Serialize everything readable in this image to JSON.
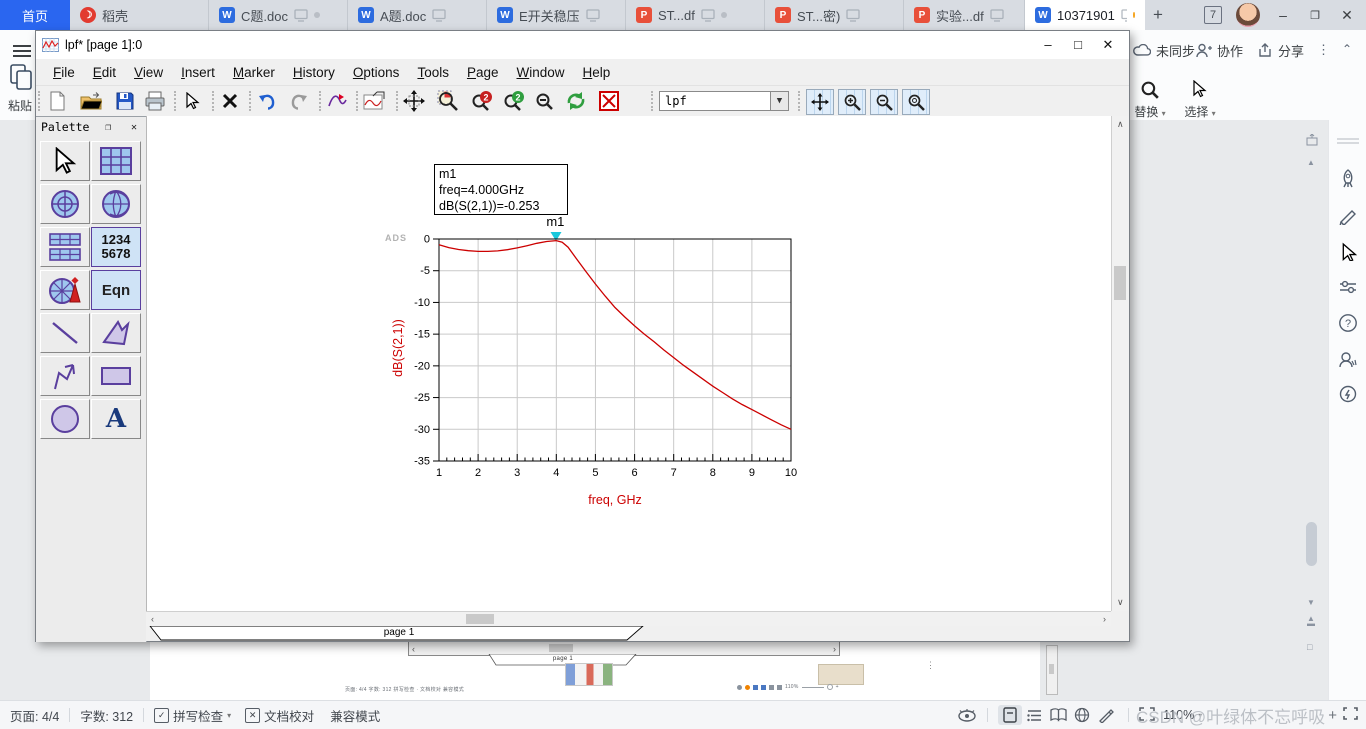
{
  "browser": {
    "tabs": [
      {
        "label": "首页"
      },
      {
        "label": "稻壳"
      },
      {
        "label": "C题.doc"
      },
      {
        "label": "A题.doc"
      },
      {
        "label": "E开关稳压"
      },
      {
        "label": "ST...df"
      },
      {
        "label": "ST...密)"
      },
      {
        "label": "实验...df"
      },
      {
        "label": "10371901"
      }
    ],
    "new_tab": "+",
    "window_count": "7",
    "minimize": "–",
    "maximize": "❐",
    "close": "✕"
  },
  "wps": {
    "paste_label": "粘贴",
    "sync_label": "未同步",
    "collab_label": "协作",
    "share_label": "分享",
    "more_label": "⋮",
    "collapse_label": "⌃",
    "replace_label": "替换",
    "select_label": "选择",
    "dropdown_arrow": "▾",
    "status": {
      "page": "页面: 4/4",
      "words": "字数: 312",
      "spell": "拼写检查",
      "proof": "文档校对",
      "compat": "兼容模式",
      "zoom": "110%"
    },
    "watermark": "CSDN @叶绿体不忘呼吸"
  },
  "ads": {
    "title": "lpf* [page 1]:0",
    "minimize": "–",
    "maximize": "□",
    "close": "✕",
    "menus": [
      "File",
      "Edit",
      "View",
      "Insert",
      "Marker",
      "History",
      "Options",
      "Tools",
      "Page",
      "Window",
      "Help"
    ],
    "combo_value": "lpf",
    "palette": {
      "title": "Palette",
      "list_line1": "1234",
      "list_line2": "5678",
      "eqn_text": "Eqn",
      "text_tool": "A"
    },
    "page_tab": "page 1"
  },
  "background": {
    "page_tab": "page 1",
    "micro_status_left": "页面: 4/4  字数: 312  拼写检查 · 文档校对  兼容模式",
    "micro_zoom": "110%"
  },
  "chart_data": {
    "type": "line",
    "title": "",
    "brand": "ADS",
    "xlabel": "freq, GHz",
    "ylabel": "dB(S(2,1))",
    "xlim": [
      1,
      10
    ],
    "ylim": [
      -35,
      0
    ],
    "xticks": [
      1,
      2,
      3,
      4,
      5,
      6,
      7,
      8,
      9,
      10
    ],
    "yticks": [
      0,
      -5,
      -10,
      -15,
      -20,
      -25,
      -30,
      -35
    ],
    "grid": true,
    "line_color": "#cc0000",
    "marker": {
      "id": "m1",
      "x": 4.0,
      "y": -0.253,
      "line1": "m1",
      "line2": "freq=4.000GHz",
      "line3": "dB(S(2,1))=-0.253",
      "color": "#19c8dc"
    },
    "series": [
      {
        "name": "dB(S(2,1))",
        "x": [
          1,
          1.25,
          1.5,
          1.75,
          2,
          2.25,
          2.5,
          2.75,
          3,
          3.25,
          3.5,
          3.75,
          4,
          4.15,
          4.3,
          4.5,
          4.75,
          5,
          5.25,
          5.5,
          5.75,
          6,
          6.25,
          6.5,
          6.75,
          7,
          7.25,
          7.5,
          7.75,
          8,
          8.25,
          8.5,
          8.75,
          9,
          9.25,
          9.5,
          9.75,
          10
        ],
        "y": [
          -0.9,
          -1.35,
          -1.65,
          -1.85,
          -1.95,
          -1.96,
          -1.88,
          -1.68,
          -1.4,
          -1.05,
          -0.68,
          -0.4,
          -0.253,
          -0.5,
          -1.3,
          -3.0,
          -5.1,
          -7.1,
          -9.0,
          -10.8,
          -12.3,
          -13.7,
          -15.0,
          -16.2,
          -17.5,
          -18.7,
          -19.9,
          -21.0,
          -22.1,
          -23.2,
          -24.2,
          -25.2,
          -26.1,
          -26.9,
          -27.7,
          -28.5,
          -29.3,
          -30.0
        ]
      }
    ]
  }
}
